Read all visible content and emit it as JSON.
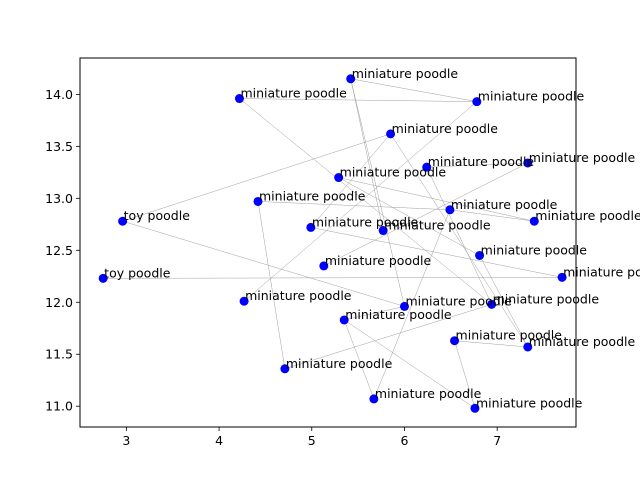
{
  "chart_data": {
    "type": "scatter",
    "title": "",
    "xlabel": "",
    "ylabel": "",
    "xlim": [
      2.5,
      7.85
    ],
    "ylim": [
      10.8,
      14.35
    ],
    "x_ticks": [
      {
        "value": 3,
        "label": "3"
      },
      {
        "value": 4,
        "label": "4"
      },
      {
        "value": 5,
        "label": "5"
      },
      {
        "value": 6,
        "label": "6"
      },
      {
        "value": 7,
        "label": "7"
      }
    ],
    "y_ticks": [
      {
        "value": 11.0,
        "label": "11.0"
      },
      {
        "value": 11.5,
        "label": "11.5"
      },
      {
        "value": 12.0,
        "label": "12.0"
      },
      {
        "value": 12.5,
        "label": "12.5"
      },
      {
        "value": 13.0,
        "label": "13.0"
      },
      {
        "value": 13.5,
        "label": "13.5"
      },
      {
        "value": 14.0,
        "label": "14.0"
      }
    ],
    "grid": false,
    "point_color": "#0000ff",
    "edge_color": "#a0a0a0",
    "points": [
      {
        "x": 5.42,
        "y": 14.15,
        "label": "miniature poodle"
      },
      {
        "x": 4.22,
        "y": 13.96,
        "label": "miniature poodle"
      },
      {
        "x": 6.78,
        "y": 13.93,
        "label": "miniature poodle"
      },
      {
        "x": 5.85,
        "y": 13.62,
        "label": "miniature poodle"
      },
      {
        "x": 7.33,
        "y": 13.34,
        "label": "miniature poodle"
      },
      {
        "x": 6.24,
        "y": 13.3,
        "label": "miniature poodle"
      },
      {
        "x": 5.29,
        "y": 13.2,
        "label": "miniature poodle"
      },
      {
        "x": 4.42,
        "y": 12.97,
        "label": "miniature poodle"
      },
      {
        "x": 6.49,
        "y": 12.89,
        "label": "miniature poodle"
      },
      {
        "x": 2.96,
        "y": 12.78,
        "label": "toy poodle"
      },
      {
        "x": 7.4,
        "y": 12.78,
        "label": "miniature poodle"
      },
      {
        "x": 4.99,
        "y": 12.72,
        "label": "miniature poodle"
      },
      {
        "x": 5.77,
        "y": 12.69,
        "label": "miniature poodle"
      },
      {
        "x": 6.81,
        "y": 12.45,
        "label": "miniature poodle"
      },
      {
        "x": 5.13,
        "y": 12.35,
        "label": "miniature poodle"
      },
      {
        "x": 2.75,
        "y": 12.23,
        "label": "toy poodle"
      },
      {
        "x": 7.7,
        "y": 12.24,
        "label": "miniature poodle"
      },
      {
        "x": 4.27,
        "y": 12.01,
        "label": "miniature poodle"
      },
      {
        "x": 6.0,
        "y": 11.96,
        "label": "miniature poodle"
      },
      {
        "x": 6.94,
        "y": 11.98,
        "label": "miniature poodle"
      },
      {
        "x": 5.35,
        "y": 11.83,
        "label": "miniature poodle"
      },
      {
        "x": 6.54,
        "y": 11.63,
        "label": "miniature poodle"
      },
      {
        "x": 7.33,
        "y": 11.57,
        "label": "miniature poodle"
      },
      {
        "x": 4.71,
        "y": 11.36,
        "label": "miniature poodle"
      },
      {
        "x": 5.67,
        "y": 11.07,
        "label": "miniature poodle"
      },
      {
        "x": 6.76,
        "y": 10.98,
        "label": "miniature poodle"
      }
    ],
    "edges": [
      [
        0,
        2
      ],
      [
        0,
        12
      ],
      [
        0,
        18
      ],
      [
        1,
        19
      ],
      [
        1,
        2
      ],
      [
        2,
        17
      ],
      [
        3,
        9
      ],
      [
        3,
        22
      ],
      [
        3,
        11
      ],
      [
        4,
        5
      ],
      [
        4,
        14
      ],
      [
        5,
        19
      ],
      [
        6,
        10
      ],
      [
        6,
        13
      ],
      [
        7,
        23
      ],
      [
        7,
        8
      ],
      [
        8,
        10
      ],
      [
        8,
        24
      ],
      [
        9,
        18
      ],
      [
        11,
        16
      ],
      [
        15,
        16
      ],
      [
        18,
        20
      ],
      [
        19,
        23
      ],
      [
        20,
        24
      ],
      [
        20,
        25
      ],
      [
        21,
        25
      ],
      [
        22,
        21
      ],
      [
        22,
        13
      ]
    ]
  }
}
